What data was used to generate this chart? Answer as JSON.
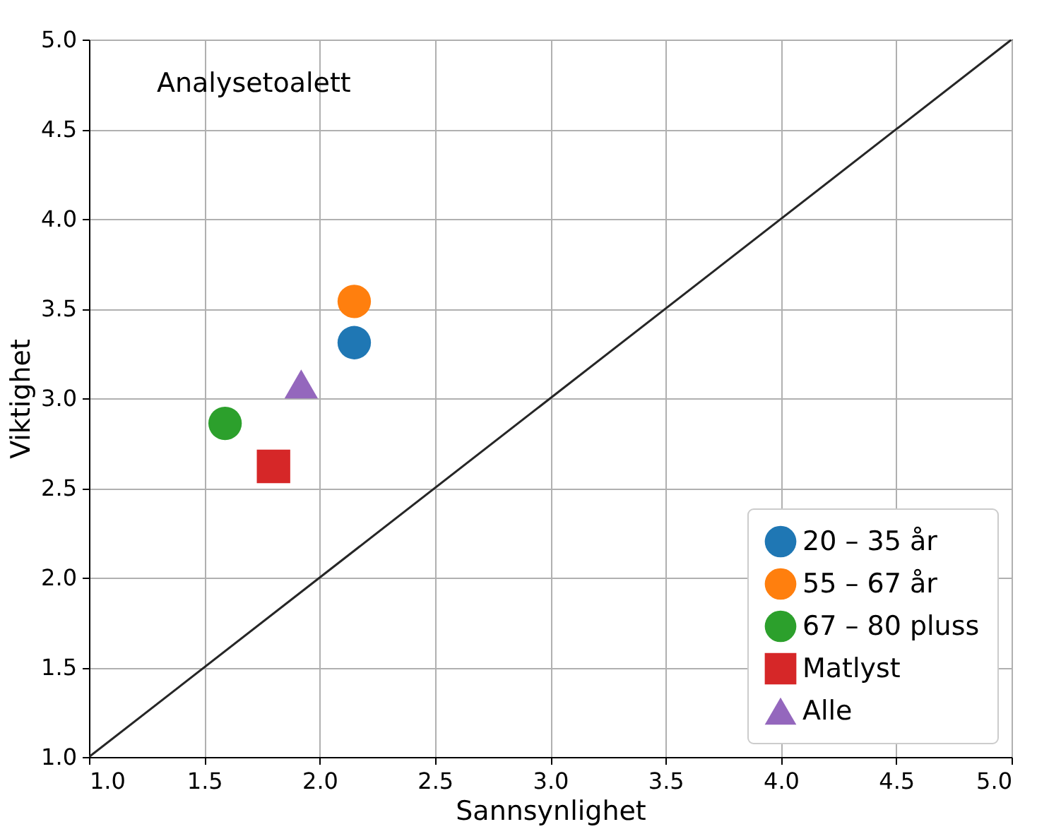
{
  "chart_data": {
    "type": "scatter",
    "xlabel": "Sannsynlighet",
    "ylabel": "Viktighet",
    "annotations": [
      "Analysetoalett"
    ],
    "xlim": [
      1,
      5
    ],
    "ylim": [
      1,
      5
    ],
    "xticks": [
      {
        "value": 1,
        "label": "1.0"
      },
      {
        "value": 1.5,
        "label": "1.5"
      },
      {
        "value": 2,
        "label": "2.0"
      },
      {
        "value": 2.5,
        "label": "2.5"
      },
      {
        "value": 3,
        "label": "3.0"
      },
      {
        "value": 3.5,
        "label": "3.5"
      },
      {
        "value": 4,
        "label": "4.0"
      },
      {
        "value": 4.5,
        "label": "4.5"
      },
      {
        "value": 5,
        "label": "5.0"
      }
    ],
    "yticks": [
      {
        "value": 1,
        "label": "1.0"
      },
      {
        "value": 1.5,
        "label": "1.5"
      },
      {
        "value": 2,
        "label": "2.0"
      },
      {
        "value": 2.5,
        "label": "2.5"
      },
      {
        "value": 3,
        "label": "3.0"
      },
      {
        "value": 3.5,
        "label": "3.5"
      },
      {
        "value": 4,
        "label": "4.0"
      },
      {
        "value": 4.5,
        "label": "4.5"
      },
      {
        "value": 5,
        "label": "5.0"
      }
    ],
    "grid": true,
    "legend": "bottom right",
    "series": [
      {
        "name": "20 – 35 år",
        "color": "#1f77b4",
        "marker": "circle",
        "x": [
          2.15
        ],
        "values": [
          3.31
        ]
      },
      {
        "name": "55 – 67 år",
        "color": "#ff7f0e",
        "marker": "circle",
        "x": [
          2.15
        ],
        "values": [
          3.54
        ]
      },
      {
        "name": "67 – 80 pluss",
        "color": "#2ca02c",
        "marker": "circle",
        "x": [
          1.59
        ],
        "values": [
          2.86
        ]
      },
      {
        "name": "Matlyst",
        "color": "#d62728",
        "marker": "square",
        "x": [
          1.8
        ],
        "values": [
          2.62
        ]
      },
      {
        "name": "Alle",
        "color": "#9467bd",
        "marker": "triangle",
        "x": [
          1.92
        ],
        "values": [
          3.08
        ]
      },
      {
        "type": "line",
        "color": "#262626",
        "line_style": "solid",
        "x": [
          1,
          5
        ],
        "values": [
          1,
          5
        ]
      }
    ]
  }
}
